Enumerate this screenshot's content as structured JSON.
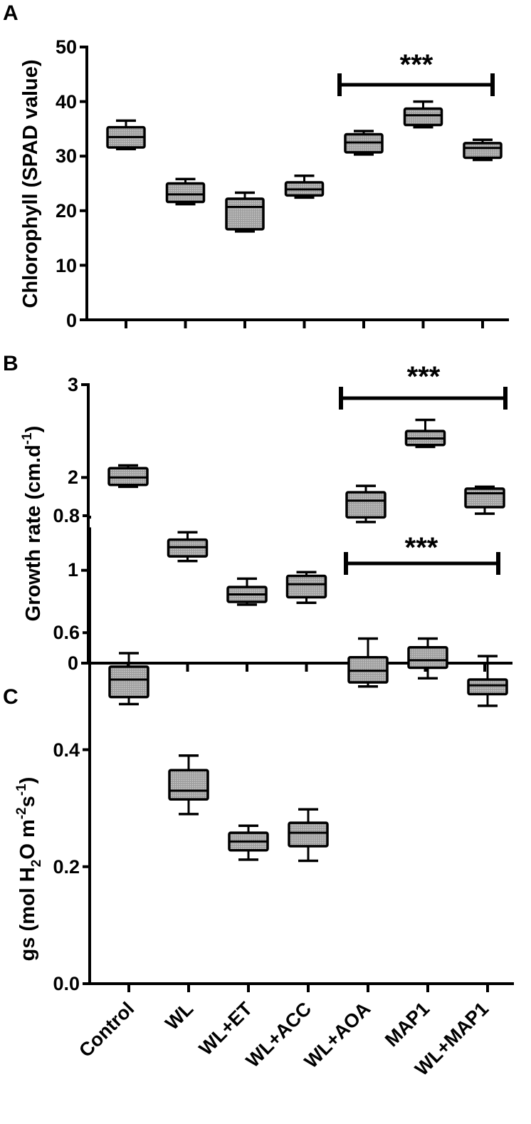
{
  "figure": {
    "categories": [
      "Control",
      "WL",
      "WL+ET",
      "WL+ACC",
      "WL+AOA",
      "MAP1",
      "WL+MAP1"
    ],
    "significance": {
      "label": "***",
      "from_category": "WL+AOA",
      "to_category": "WL+MAP1"
    }
  },
  "chart_data": [
    {
      "type": "boxplot",
      "panel": "A",
      "ylabel": "Chlorophyll (SPAD value)",
      "ylim": [
        0,
        50
      ],
      "yticks": [
        "0",
        "10",
        "20",
        "30",
        "40",
        "50"
      ],
      "categories": [
        "Control",
        "WL",
        "WL+ET",
        "WL+ACC",
        "WL+AOA",
        "MAP1",
        "WL+MAP1"
      ],
      "boxes": [
        {
          "min": 31.3,
          "q1": 31.6,
          "median": 33.5,
          "q3": 35.3,
          "max": 36.5
        },
        {
          "min": 21.2,
          "q1": 21.6,
          "median": 23.0,
          "q3": 25.0,
          "max": 25.8
        },
        {
          "min": 16.2,
          "q1": 16.6,
          "median": 20.7,
          "q3": 22.2,
          "max": 23.3
        },
        {
          "min": 22.4,
          "q1": 22.8,
          "median": 23.9,
          "q3": 25.2,
          "max": 26.4
        },
        {
          "min": 30.3,
          "q1": 30.7,
          "median": 32.5,
          "q3": 34.0,
          "max": 34.6
        },
        {
          "min": 35.3,
          "q1": 35.7,
          "median": 37.5,
          "q3": 38.7,
          "max": 40.0
        },
        {
          "min": 29.3,
          "q1": 29.7,
          "median": 31.5,
          "q3": 32.4,
          "max": 33.0
        }
      ],
      "annotation": "***"
    },
    {
      "type": "boxplot",
      "panel": "B",
      "ylabel": "Growth rate (cm.d-1)",
      "ylim": [
        0,
        3
      ],
      "yticks": [
        "0",
        "1",
        "2",
        "3"
      ],
      "categories": [
        "Control",
        "WL",
        "WL+ET",
        "WL+ACC",
        "WL+AOA",
        "MAP1",
        "WL+MAP1"
      ],
      "boxes": [
        {
          "min": 1.9,
          "q1": 1.92,
          "median": 2.0,
          "q3": 2.1,
          "max": 2.13
        },
        {
          "min": 1.1,
          "q1": 1.15,
          "median": 1.25,
          "q3": 1.33,
          "max": 1.41
        },
        {
          "min": 0.63,
          "q1": 0.66,
          "median": 0.74,
          "q3": 0.82,
          "max": 0.91
        },
        {
          "min": 0.65,
          "q1": 0.71,
          "median": 0.85,
          "q3": 0.94,
          "max": 0.98
        },
        {
          "min": 1.52,
          "q1": 1.57,
          "median": 1.75,
          "q3": 1.84,
          "max": 1.91
        },
        {
          "min": 2.33,
          "q1": 2.35,
          "median": 2.42,
          "q3": 2.5,
          "max": 2.62
        },
        {
          "min": 1.61,
          "q1": 1.68,
          "median": 1.83,
          "q3": 1.88,
          "max": 1.9
        }
      ],
      "annotation": "***"
    },
    {
      "type": "boxplot",
      "panel": "C",
      "ylabel": "gs (mol H2O m-2s-1)",
      "ylim": [
        0,
        0.8
      ],
      "yticks": [
        "0.0",
        "0.2",
        "0.4",
        "0.6",
        "0.8"
      ],
      "categories": [
        "Control",
        "WL",
        "WL+ET",
        "WL+ACC",
        "WL+AOA",
        "MAP1",
        "WL+MAP1"
      ],
      "boxes": [
        {
          "min": 0.478,
          "q1": 0.49,
          "median": 0.52,
          "q3": 0.542,
          "max": 0.565
        },
        {
          "min": 0.29,
          "q1": 0.315,
          "median": 0.33,
          "q3": 0.365,
          "max": 0.39
        },
        {
          "min": 0.212,
          "q1": 0.228,
          "median": 0.243,
          "q3": 0.258,
          "max": 0.27
        },
        {
          "min": 0.21,
          "q1": 0.235,
          "median": 0.258,
          "q3": 0.275,
          "max": 0.298
        },
        {
          "min": 0.508,
          "q1": 0.515,
          "median": 0.535,
          "q3": 0.558,
          "max": 0.59
        },
        {
          "min": 0.522,
          "q1": 0.54,
          "median": 0.553,
          "q3": 0.575,
          "max": 0.59
        },
        {
          "min": 0.475,
          "q1": 0.495,
          "median": 0.51,
          "q3": 0.52,
          "max": 0.56
        }
      ],
      "annotation": "***"
    }
  ]
}
